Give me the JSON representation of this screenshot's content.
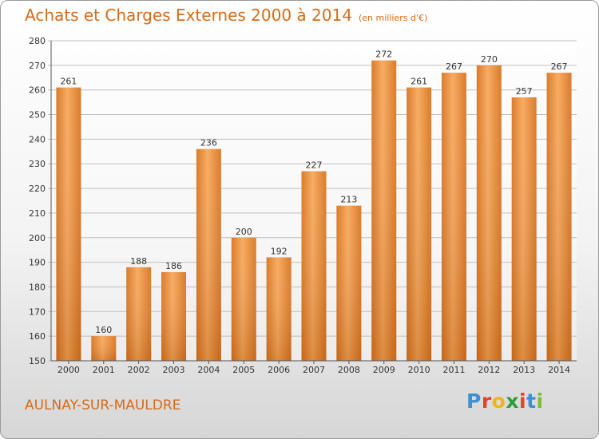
{
  "header": {
    "title": "Achats et Charges Externes 2000 à 2014",
    "unit": "(en milliers d'€)"
  },
  "footer": {
    "city": "AULNAY-SUR-MAULDRE",
    "logo_letters": [
      "P",
      "r",
      "o",
      "x",
      "i",
      "t",
      "i"
    ],
    "logo_colors": [
      "#3d8fd6",
      "#e2432a",
      "#f0b418",
      "#2d9c3a",
      "#e2432a",
      "#3d8fd6",
      "#7cbf32"
    ]
  },
  "colors": {
    "title": "#d66a18",
    "bar_light": "#f7a85b",
    "bar_dark": "#d87420",
    "grid": "#bfbfbf"
  },
  "chart_data": {
    "type": "bar",
    "title": "Achats et Charges Externes 2000 à 2014",
    "categories": [
      "2000",
      "2001",
      "2002",
      "2003",
      "2004",
      "2005",
      "2006",
      "2007",
      "2008",
      "2009",
      "2010",
      "2011",
      "2012",
      "2013",
      "2014"
    ],
    "values": [
      261,
      160,
      188,
      186,
      236,
      200,
      192,
      227,
      213,
      272,
      261,
      267,
      270,
      257,
      267
    ],
    "ylim": [
      150,
      280
    ],
    "yticks": [
      150,
      160,
      170,
      180,
      190,
      200,
      210,
      220,
      230,
      240,
      250,
      260,
      270,
      280
    ],
    "grid": true,
    "xlabel": "",
    "ylabel": ""
  }
}
